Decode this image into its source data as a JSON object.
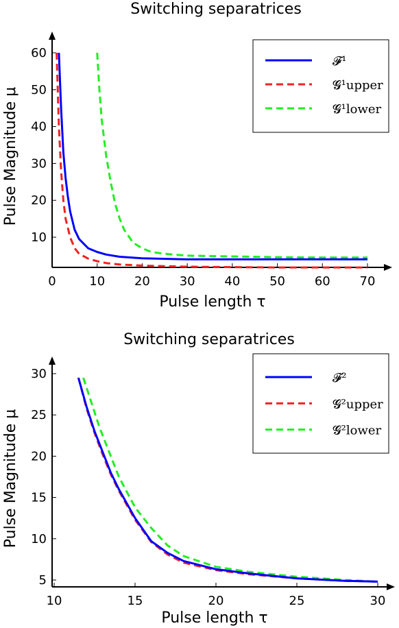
{
  "chart_data": [
    {
      "type": "line",
      "title": "Switching separatrices",
      "xlabel": "Pulse length τ",
      "ylabel": "Pulse Magnitude μ",
      "xlim": [
        0,
        72
      ],
      "ylim": [
        1,
        62
      ],
      "xticks": [
        0,
        10,
        20,
        30,
        40,
        50,
        60,
        70
      ],
      "xtick_labels": [
        "0",
        "10",
        "20",
        "30",
        "40",
        "50",
        "60",
        "70"
      ],
      "yticks": [
        10,
        20,
        30,
        40,
        50,
        60
      ],
      "ytick_labels": [
        "10",
        "20",
        "30",
        "40",
        "50",
        "60"
      ],
      "grid": false,
      "legend_position": "top-right",
      "series": [
        {
          "name": "𝓕¹",
          "color": "#0000ff",
          "style": "solid",
          "x": [
            1.5,
            2,
            2.5,
            3,
            3.5,
            4,
            5,
            6,
            8,
            10,
            12,
            15,
            20,
            30,
            40,
            50,
            60,
            70
          ],
          "y": [
            60,
            45,
            33,
            26,
            21,
            17,
            12,
            9.5,
            7,
            6,
            5.3,
            4.7,
            4.3,
            4,
            4,
            4,
            4,
            4
          ]
        },
        {
          "name": "𝓖¹upper",
          "color": "#ee2222",
          "style": "dashed",
          "x": [
            1,
            1.5,
            2,
            2.5,
            3,
            4,
            5,
            6,
            8,
            10,
            12,
            15,
            20,
            30,
            40,
            50,
            60,
            70
          ],
          "y": [
            60,
            40,
            28,
            20,
            15,
            10,
            7,
            5.5,
            4.2,
            3.5,
            3,
            2.6,
            2.3,
            2,
            1.9,
            1.8,
            1.8,
            1.8
          ]
        },
        {
          "name": "𝓖¹lower",
          "color": "#22ee22",
          "style": "dashed",
          "x": [
            10,
            10.5,
            11,
            12,
            13,
            14,
            15,
            16,
            18,
            20,
            22,
            25,
            30,
            40,
            50,
            60,
            70
          ],
          "y": [
            60,
            50,
            42,
            32,
            25,
            19,
            15,
            12,
            8.5,
            7,
            6,
            5.5,
            5,
            4.8,
            4.6,
            4.5,
            4.5
          ]
        }
      ]
    },
    {
      "type": "line",
      "title": "Switching separatrices",
      "xlabel": "Pulse length τ",
      "ylabel": "Pulse Magnitude μ",
      "xlim": [
        10,
        31
      ],
      "ylim": [
        4,
        31
      ],
      "xticks": [
        10,
        15,
        20,
        25,
        30
      ],
      "xtick_labels": [
        "10",
        "15",
        "20",
        "25",
        "30"
      ],
      "yticks": [
        5,
        10,
        15,
        20,
        25,
        30
      ],
      "ytick_labels": [
        "5",
        "10",
        "15",
        "20",
        "25",
        "30"
      ],
      "grid": false,
      "legend_position": "top-right",
      "series": [
        {
          "name": "𝓕²",
          "color": "#0000ff",
          "style": "solid",
          "x": [
            11.5,
            12,
            12.5,
            13,
            13.5,
            14,
            15,
            16,
            17,
            18,
            20,
            22,
            25,
            28,
            30
          ],
          "y": [
            29.5,
            26,
            23,
            20.5,
            18,
            16,
            12.5,
            9.7,
            8.3,
            7.3,
            6.3,
            5.8,
            5.2,
            4.9,
            4.8
          ]
        },
        {
          "name": "𝓖²upper",
          "color": "#ee2222",
          "style": "dashed",
          "x": [
            11.5,
            12,
            12.5,
            13,
            13.5,
            14,
            15,
            16,
            17,
            18,
            20,
            22,
            25,
            28,
            30
          ],
          "y": [
            29.5,
            25.8,
            22.8,
            20.2,
            17.8,
            15.8,
            12.3,
            9.6,
            8.1,
            7.1,
            6.2,
            5.7,
            5.2,
            4.9,
            4.8
          ]
        },
        {
          "name": "𝓖²lower",
          "color": "#22ee22",
          "style": "dashed",
          "x": [
            11.8,
            12.3,
            12.8,
            13.3,
            14,
            15,
            16,
            17,
            18,
            20,
            22,
            25,
            28,
            30
          ],
          "y": [
            29.5,
            26.5,
            23.5,
            21,
            17.5,
            13.8,
            11.3,
            9.2,
            7.9,
            6.6,
            6,
            5.4,
            5,
            4.8
          ]
        }
      ]
    }
  ]
}
